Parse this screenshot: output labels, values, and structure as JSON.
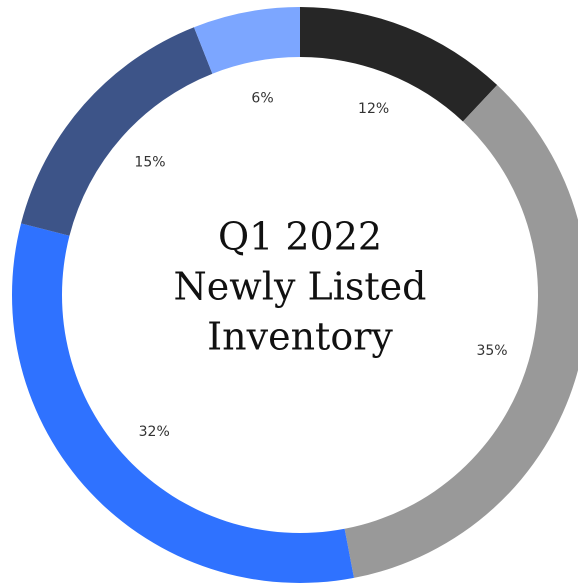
{
  "chart_data": {
    "type": "donut",
    "title": [
      "Q1 2022",
      "Newly Listed",
      "Inventory"
    ],
    "values": [
      12,
      35,
      32,
      15,
      6
    ],
    "value_labels": [
      "12%",
      "35%",
      "32%",
      "15%",
      "6%"
    ],
    "colors": [
      "#262626",
      "#999999",
      "#2f72ff",
      "#3d5488",
      "#7ca6ff"
    ]
  }
}
